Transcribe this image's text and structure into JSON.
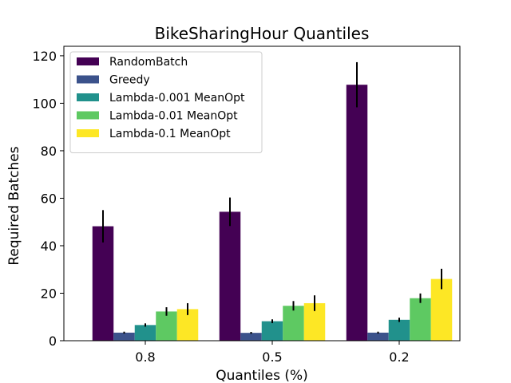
{
  "chart_data": {
    "type": "bar",
    "title": "BikeSharingHour Quantiles",
    "xlabel": "Quantiles (%)",
    "ylabel": "Required Batches",
    "categories": [
      "0.8",
      "0.5",
      "0.2"
    ],
    "ylim": [
      0,
      124
    ],
    "yticks": [
      0,
      20,
      40,
      60,
      80,
      100,
      120
    ],
    "grid": false,
    "legend_position": "top-left",
    "series": [
      {
        "name": "RandomBatch",
        "color": "#440154",
        "values": [
          48.2,
          54.3,
          107.8
        ],
        "errors": [
          6.8,
          6.0,
          9.5
        ]
      },
      {
        "name": "Greedy",
        "color": "#3b528b",
        "values": [
          3.4,
          3.3,
          3.4
        ],
        "errors": [
          0.4,
          0.4,
          0.4
        ]
      },
      {
        "name": "Lambda-0.001 MeanOpt",
        "color": "#21918c",
        "values": [
          6.6,
          8.2,
          8.8
        ],
        "errors": [
          0.7,
          0.8,
          0.9
        ]
      },
      {
        "name": "Lambda-0.01 MeanOpt",
        "color": "#5ec962",
        "values": [
          12.3,
          14.7,
          17.9
        ],
        "errors": [
          1.8,
          2.0,
          2.0
        ]
      },
      {
        "name": "Lambda-0.1 MeanOpt",
        "color": "#fde725",
        "values": [
          13.3,
          15.8,
          26.0
        ],
        "errors": [
          2.5,
          3.3,
          4.3
        ]
      }
    ]
  }
}
